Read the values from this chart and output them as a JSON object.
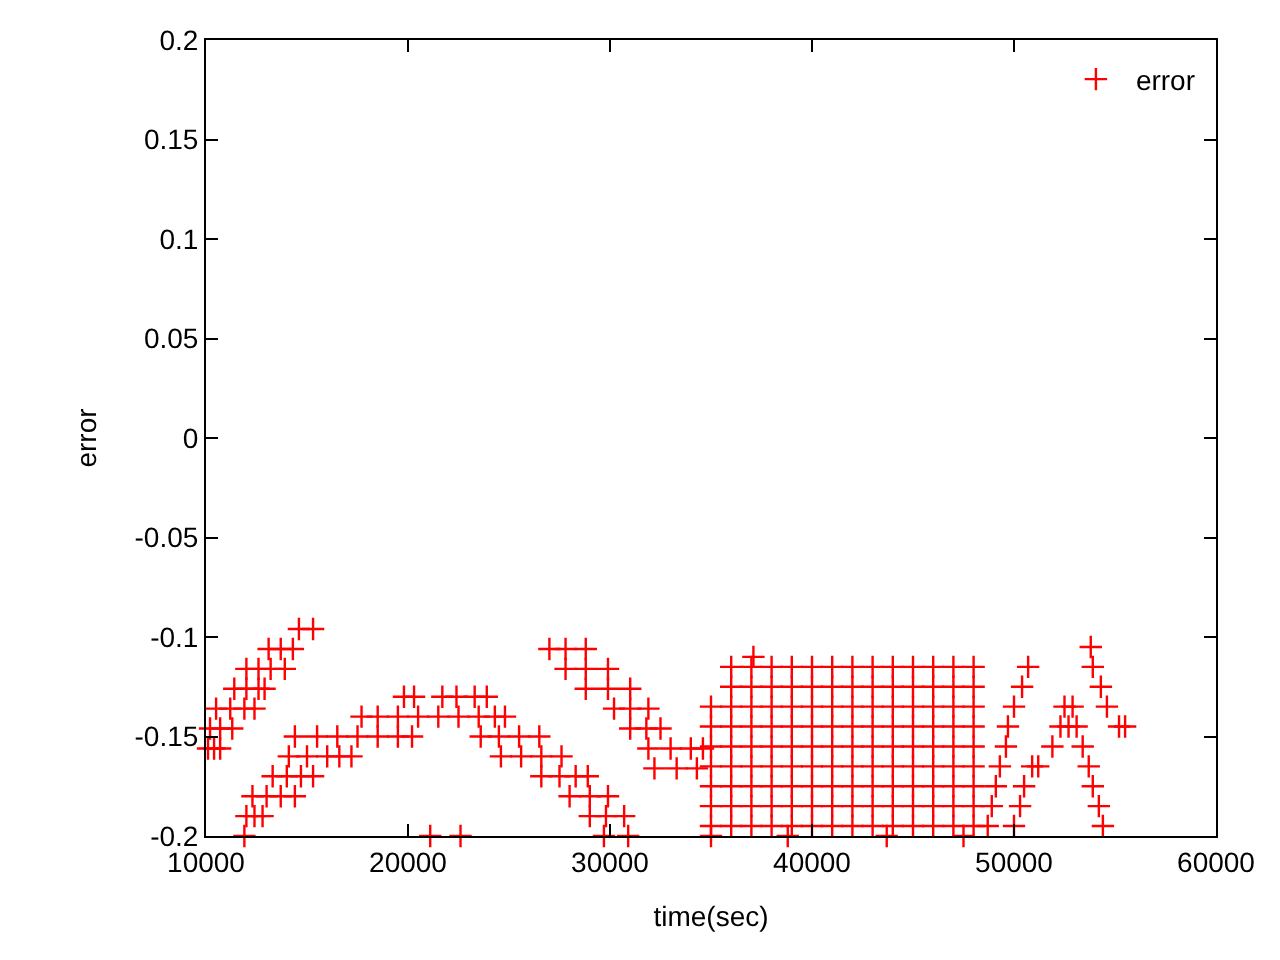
{
  "chart_data": {
    "type": "scatter",
    "xlabel": "time(sec)",
    "ylabel": "error",
    "xlim": [
      10000,
      60000
    ],
    "xticks": [
      10000,
      20000,
      30000,
      40000,
      50000,
      60000
    ],
    "ylim": [
      -0.2,
      0.2
    ],
    "yticks": [
      -0.2,
      -0.15,
      -0.1,
      -0.05,
      0,
      0.05,
      0.1,
      0.15,
      0.2
    ],
    "legend": "top right",
    "marker": "cross",
    "series": [
      {
        "name": "error",
        "color": "#ff0000",
        "x": [
          10100,
          10400,
          10700,
          10200,
          10700,
          11300,
          10500,
          11200,
          11900,
          12400,
          11400,
          12000,
          12600,
          12900,
          12000,
          12600,
          13200,
          13900,
          13100,
          13700,
          14300,
          14600,
          15300,
          11900,
          12000,
          12400,
          12800,
          12300,
          13000,
          13700,
          14400,
          13300,
          14000,
          14700,
          15300,
          14100,
          15000,
          16000,
          16600,
          17200,
          14400,
          15500,
          16500,
          17500,
          18500,
          19500,
          20200,
          17700,
          18500,
          19500,
          20500,
          21500,
          22500,
          23500,
          24300,
          24800,
          19800,
          20300,
          21700,
          22400,
          23300,
          23900,
          21100,
          22600,
          23600,
          24500,
          25500,
          26500,
          24600,
          25600,
          26600,
          27600,
          26600,
          27500,
          28300,
          28900,
          28000,
          29000,
          29900,
          29000,
          29800,
          30700,
          29700,
          30900,
          27000,
          27800,
          28800,
          27800,
          28800,
          29900,
          28800,
          29900,
          31000,
          30200,
          31000,
          31900,
          31000,
          31800,
          32500,
          31900,
          33000,
          34000,
          34600,
          32200,
          33300,
          34300,
          35000,
          35000,
          35000,
          35000,
          35000,
          35000,
          35000,
          35000,
          36000,
          36000,
          36000,
          36000,
          36000,
          36000,
          36000,
          36000,
          36000,
          37000,
          37000,
          37000,
          37000,
          37000,
          37000,
          37000,
          37000,
          37000,
          38000,
          38000,
          38000,
          38000,
          38000,
          38000,
          38000,
          38000,
          38000,
          39000,
          39000,
          39000,
          39000,
          39000,
          39000,
          39000,
          39000,
          39000,
          40000,
          40000,
          40000,
          40000,
          40000,
          40000,
          40000,
          40000,
          40000,
          41000,
          41000,
          41000,
          41000,
          41000,
          41000,
          41000,
          41000,
          41000,
          42000,
          42000,
          42000,
          42000,
          42000,
          42000,
          42000,
          42000,
          42000,
          43000,
          43000,
          43000,
          43000,
          43000,
          43000,
          43000,
          43000,
          43000,
          44000,
          44000,
          44000,
          44000,
          44000,
          44000,
          44000,
          44000,
          44000,
          45000,
          45000,
          45000,
          45000,
          45000,
          45000,
          45000,
          45000,
          45000,
          46000,
          46000,
          46000,
          46000,
          46000,
          46000,
          46000,
          46000,
          46000,
          47000,
          47000,
          47000,
          47000,
          47000,
          47000,
          47000,
          47000,
          47000,
          48000,
          48000,
          48000,
          48000,
          48000,
          48000,
          48000,
          48000,
          48000,
          37100,
          38800,
          43700,
          47500,
          48700,
          48900,
          49100,
          49300,
          49600,
          49700,
          50000,
          50400,
          50700,
          50000,
          50300,
          50500,
          50900,
          51200,
          51900,
          52300,
          52700,
          53100,
          52500,
          52900,
          53400,
          53700,
          53900,
          54200,
          54400,
          53800,
          53900,
          54300,
          54600,
          55200,
          55500
        ],
        "values": [
          -0.156,
          -0.156,
          -0.156,
          -0.146,
          -0.146,
          -0.146,
          -0.136,
          -0.136,
          -0.136,
          -0.136,
          -0.126,
          -0.126,
          -0.126,
          -0.126,
          -0.116,
          -0.116,
          -0.116,
          -0.116,
          -0.106,
          -0.106,
          -0.106,
          -0.096,
          -0.096,
          -0.2,
          -0.19,
          -0.19,
          -0.19,
          -0.18,
          -0.18,
          -0.18,
          -0.18,
          -0.17,
          -0.17,
          -0.17,
          -0.17,
          -0.16,
          -0.16,
          -0.16,
          -0.16,
          -0.16,
          -0.15,
          -0.15,
          -0.15,
          -0.15,
          -0.15,
          -0.15,
          -0.15,
          -0.14,
          -0.14,
          -0.14,
          -0.14,
          -0.14,
          -0.14,
          -0.14,
          -0.14,
          -0.14,
          -0.13,
          -0.13,
          -0.13,
          -0.13,
          -0.13,
          -0.13,
          -0.2,
          -0.2,
          -0.15,
          -0.15,
          -0.15,
          -0.15,
          -0.16,
          -0.16,
          -0.16,
          -0.16,
          -0.17,
          -0.17,
          -0.17,
          -0.17,
          -0.18,
          -0.18,
          -0.18,
          -0.19,
          -0.19,
          -0.19,
          -0.2,
          -0.2,
          -0.106,
          -0.106,
          -0.106,
          -0.116,
          -0.116,
          -0.116,
          -0.126,
          -0.126,
          -0.126,
          -0.136,
          -0.136,
          -0.136,
          -0.146,
          -0.146,
          -0.146,
          -0.156,
          -0.156,
          -0.156,
          -0.156,
          -0.166,
          -0.166,
          -0.166,
          -0.135,
          -0.145,
          -0.155,
          -0.165,
          -0.175,
          -0.185,
          -0.195,
          -0.2,
          -0.115,
          -0.125,
          -0.135,
          -0.145,
          -0.155,
          -0.165,
          -0.175,
          -0.185,
          -0.195,
          -0.115,
          -0.125,
          -0.135,
          -0.145,
          -0.155,
          -0.165,
          -0.175,
          -0.185,
          -0.195,
          -0.115,
          -0.125,
          -0.135,
          -0.145,
          -0.155,
          -0.165,
          -0.175,
          -0.185,
          -0.195,
          -0.115,
          -0.125,
          -0.135,
          -0.145,
          -0.155,
          -0.165,
          -0.175,
          -0.185,
          -0.195,
          -0.115,
          -0.125,
          -0.135,
          -0.145,
          -0.155,
          -0.165,
          -0.175,
          -0.185,
          -0.195,
          -0.115,
          -0.125,
          -0.135,
          -0.145,
          -0.155,
          -0.165,
          -0.175,
          -0.185,
          -0.195,
          -0.115,
          -0.125,
          -0.135,
          -0.145,
          -0.155,
          -0.165,
          -0.175,
          -0.185,
          -0.195,
          -0.115,
          -0.125,
          -0.135,
          -0.145,
          -0.155,
          -0.165,
          -0.175,
          -0.185,
          -0.195,
          -0.115,
          -0.125,
          -0.135,
          -0.145,
          -0.155,
          -0.165,
          -0.175,
          -0.185,
          -0.195,
          -0.115,
          -0.125,
          -0.135,
          -0.145,
          -0.155,
          -0.165,
          -0.175,
          -0.185,
          -0.195,
          -0.115,
          -0.125,
          -0.135,
          -0.145,
          -0.155,
          -0.165,
          -0.175,
          -0.185,
          -0.195,
          -0.115,
          -0.125,
          -0.135,
          -0.145,
          -0.155,
          -0.165,
          -0.175,
          -0.185,
          -0.195,
          -0.115,
          -0.125,
          -0.135,
          -0.145,
          -0.155,
          -0.165,
          -0.175,
          -0.185,
          -0.195,
          -0.11,
          -0.2,
          -0.2,
          -0.2,
          -0.195,
          -0.185,
          -0.175,
          -0.165,
          -0.155,
          -0.145,
          -0.135,
          -0.125,
          -0.115,
          -0.195,
          -0.185,
          -0.175,
          -0.165,
          -0.165,
          -0.155,
          -0.145,
          -0.145,
          -0.145,
          -0.135,
          -0.135,
          -0.155,
          -0.165,
          -0.175,
          -0.185,
          -0.195,
          -0.105,
          -0.115,
          -0.125,
          -0.135,
          -0.145,
          -0.145
        ]
      }
    ]
  }
}
